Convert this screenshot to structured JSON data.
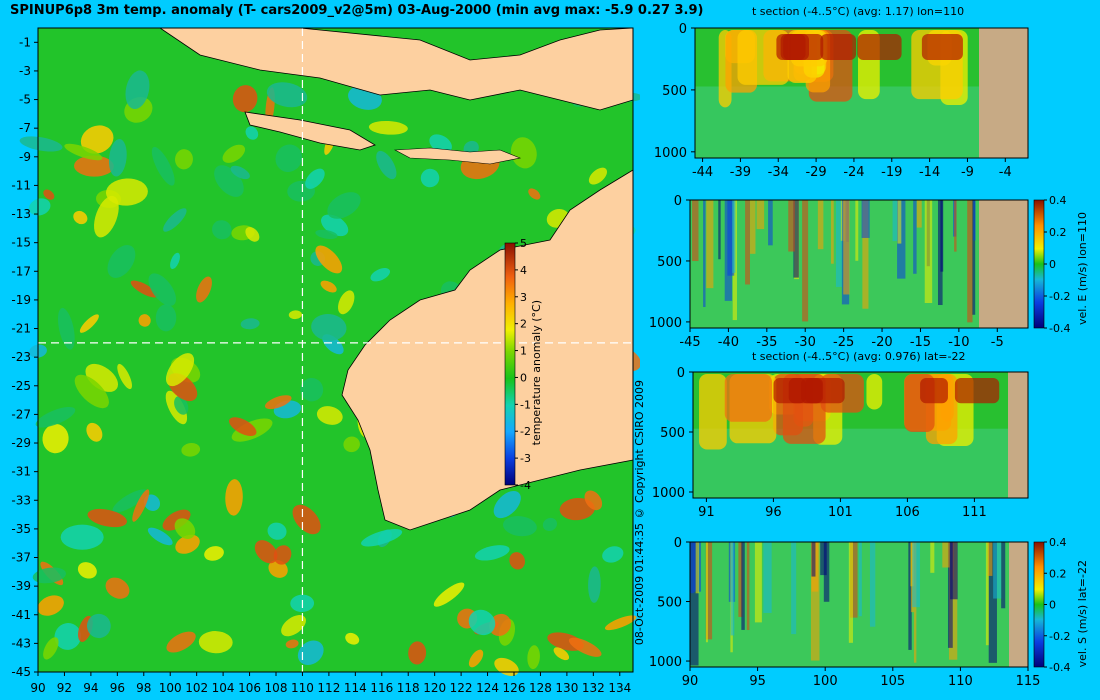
{
  "title": "SPINUP6p8 3m temp. anomaly (T- cars2009_v2@5m) 03-Aug-2000 (min avg max: -5.9 0.27 3.9)",
  "copyright": "08-Oct-2009 01:44:35     © Copyright CSIRO 2009",
  "colors": {
    "background": "#00ccff",
    "land": "#fdd0a0",
    "section_bottom": "#c7aa85"
  },
  "chart_data": [
    {
      "type": "heatmap",
      "title": "SPINUP6p8 3m temp. anomaly (T- cars2009_v2@5m) 03-Aug-2000 (min avg max: -5.9 0.27 3.9)",
      "x_ticks": [
        "90",
        "92",
        "94",
        "96",
        "98",
        "100",
        "102",
        "104",
        "106",
        "108",
        "110",
        "112",
        "114",
        "116",
        "118",
        "120",
        "122",
        "124",
        "126",
        "128",
        "130",
        "132",
        "134"
      ],
      "y_ticks": [
        "-1",
        "-3",
        "-5",
        "-7",
        "-9",
        "-11",
        "-13",
        "-15",
        "-17",
        "-19",
        "-21",
        "-23",
        "-25",
        "-27",
        "-29",
        "-31",
        "-33",
        "-35",
        "-37",
        "-39",
        "-41",
        "-43",
        "-45"
      ],
      "xlim": [
        90,
        135
      ],
      "ylim": [
        -45,
        0
      ],
      "crosshair": {
        "lon": 110,
        "lat": -22
      },
      "colorbar": {
        "label": "temperature anomaly (°C)",
        "ticks": [
          "5",
          "4",
          "3",
          "2",
          "1",
          "0",
          "-1",
          "-2",
          "-3",
          "-4"
        ],
        "range": [
          -4,
          5
        ]
      }
    },
    {
      "type": "heatmap",
      "title": "t section (-4..5°C) (avg: 1.17) lon=110",
      "x_ticks": [
        "-44",
        "-39",
        "-34",
        "-29",
        "-24",
        "-19",
        "-14",
        "-9",
        "-4"
      ],
      "y_ticks": [
        "0",
        "500",
        "1000"
      ],
      "xlim": [
        -45,
        -1
      ],
      "ylim": [
        1050,
        0
      ]
    },
    {
      "type": "heatmap",
      "x_ticks": [
        "-45",
        "-40",
        "-35",
        "-30",
        "-25",
        "-20",
        "-15",
        "-10",
        "-5"
      ],
      "y_ticks": [
        "0",
        "500",
        "1000"
      ],
      "xlim": [
        -45,
        -1
      ],
      "ylim": [
        1050,
        0
      ],
      "colorbar": {
        "label": "vel. E (m/s) lon=110",
        "ticks": [
          "0.4",
          "0.2",
          "0",
          "-0.2",
          "-0.4"
        ],
        "range": [
          -0.4,
          0.4
        ]
      }
    },
    {
      "type": "heatmap",
      "title": "t section (-4..5°C) (avg: 0.976) lat=-22",
      "x_ticks": [
        "91",
        "96",
        "101",
        "106",
        "111"
      ],
      "y_ticks": [
        "0",
        "500",
        "1000"
      ],
      "xlim": [
        90,
        115
      ],
      "ylim": [
        1050,
        0
      ]
    },
    {
      "type": "heatmap",
      "x_ticks": [
        "90",
        "95",
        "100",
        "105",
        "110",
        "115"
      ],
      "y_ticks": [
        "0",
        "500",
        "1000"
      ],
      "xlim": [
        90,
        115
      ],
      "ylim": [
        1050,
        0
      ],
      "colorbar": {
        "label": "vel. S (m/s) lat=-22",
        "ticks": [
          "0.4",
          "0.2",
          "0",
          "-0.2",
          "-0.4"
        ],
        "range": [
          -0.4,
          0.4
        ]
      }
    }
  ]
}
